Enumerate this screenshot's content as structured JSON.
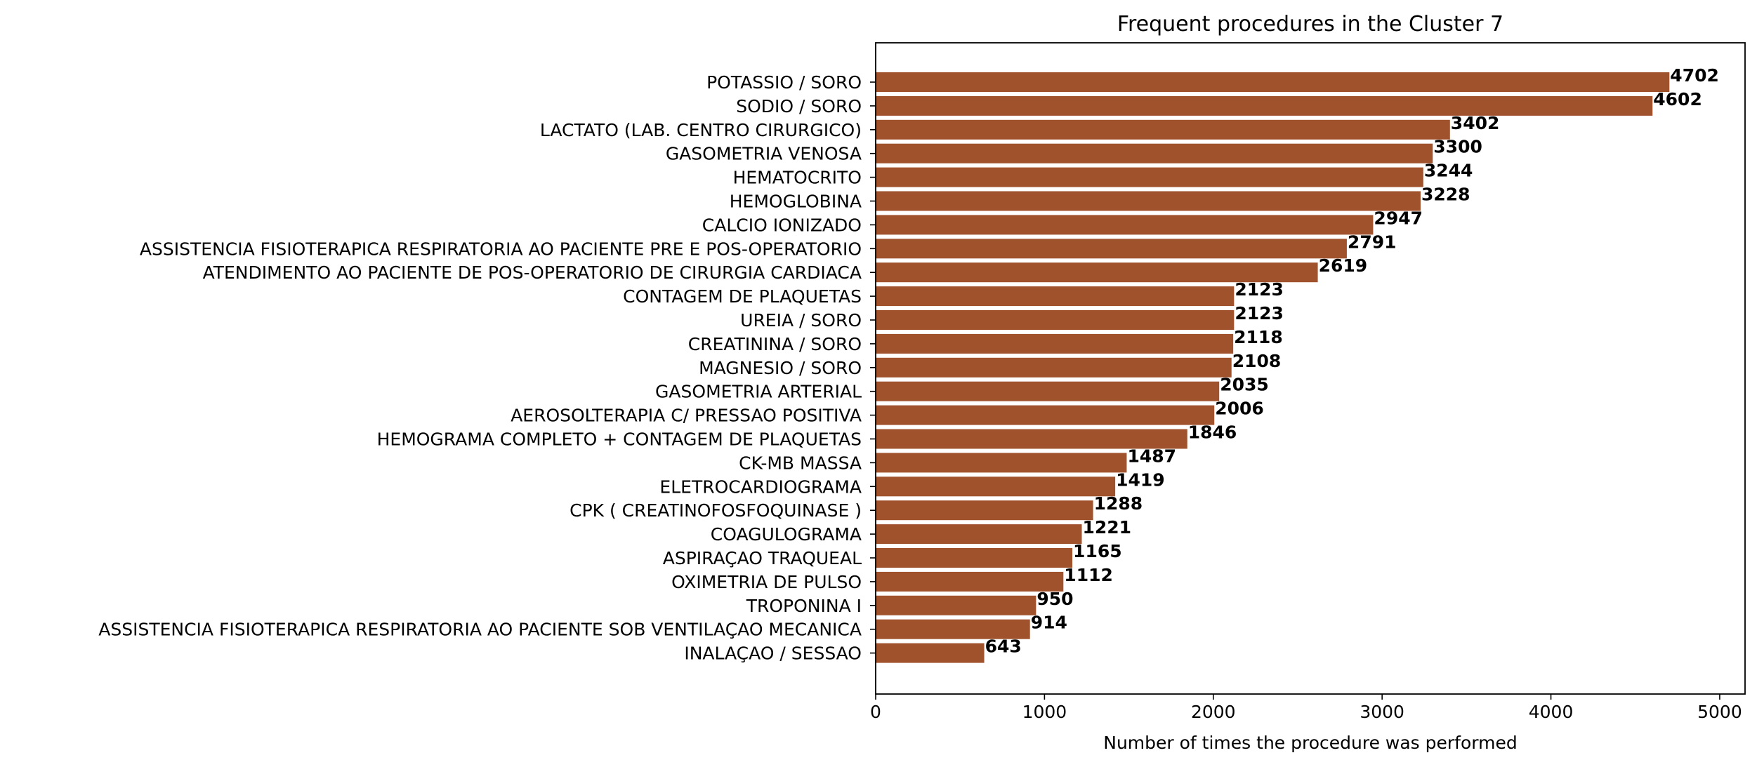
{
  "chart_data": {
    "type": "bar",
    "orientation": "horizontal",
    "title": "Frequent procedures in the Cluster  7",
    "xlabel": "Number of times the procedure was performed",
    "ylabel": "",
    "xlim": [
      0,
      5150
    ],
    "xticks": [
      0,
      1000,
      2000,
      3000,
      4000,
      5000
    ],
    "grid": false,
    "bar_color": "#a0522d",
    "categories": [
      "POTASSIO / SORO",
      "SODIO / SORO",
      "LACTATO (LAB. CENTRO CIRURGICO)",
      "GASOMETRIA VENOSA",
      "HEMATOCRITO",
      "HEMOGLOBINA",
      "CALCIO IONIZADO",
      "ASSISTENCIA FISIOTERAPICA RESPIRATORIA AO PACIENTE PRE E POS-OPERATORIO",
      "ATENDIMENTO AO PACIENTE DE POS-OPERATORIO DE CIRURGIA CARDIACA",
      "CONTAGEM DE PLAQUETAS",
      "UREIA / SORO",
      "CREATININA / SORO",
      "MAGNESIO / SORO",
      "GASOMETRIA ARTERIAL",
      "AEROSOLTERAPIA C/ PRESSAO POSITIVA",
      "HEMOGRAMA COMPLETO + CONTAGEM DE PLAQUETAS",
      "CK-MB  MASSA",
      "ELETROCARDIOGRAMA",
      "CPK ( CREATINOFOSFOQUINASE )",
      "COAGULOGRAMA",
      "ASPIRAÇAO TRAQUEAL",
      "OXIMETRIA DE PULSO",
      "TROPONINA I",
      "ASSISTENCIA FISIOTERAPICA RESPIRATORIA AO PACIENTE SOB VENTILAÇAO MECANICA",
      "INALAÇAO / SESSAO"
    ],
    "values": [
      4702,
      4602,
      3402,
      3300,
      3244,
      3228,
      2947,
      2791,
      2619,
      2123,
      2123,
      2118,
      2108,
      2035,
      2006,
      1846,
      1487,
      1419,
      1288,
      1221,
      1165,
      1112,
      950,
      914,
      643
    ]
  }
}
